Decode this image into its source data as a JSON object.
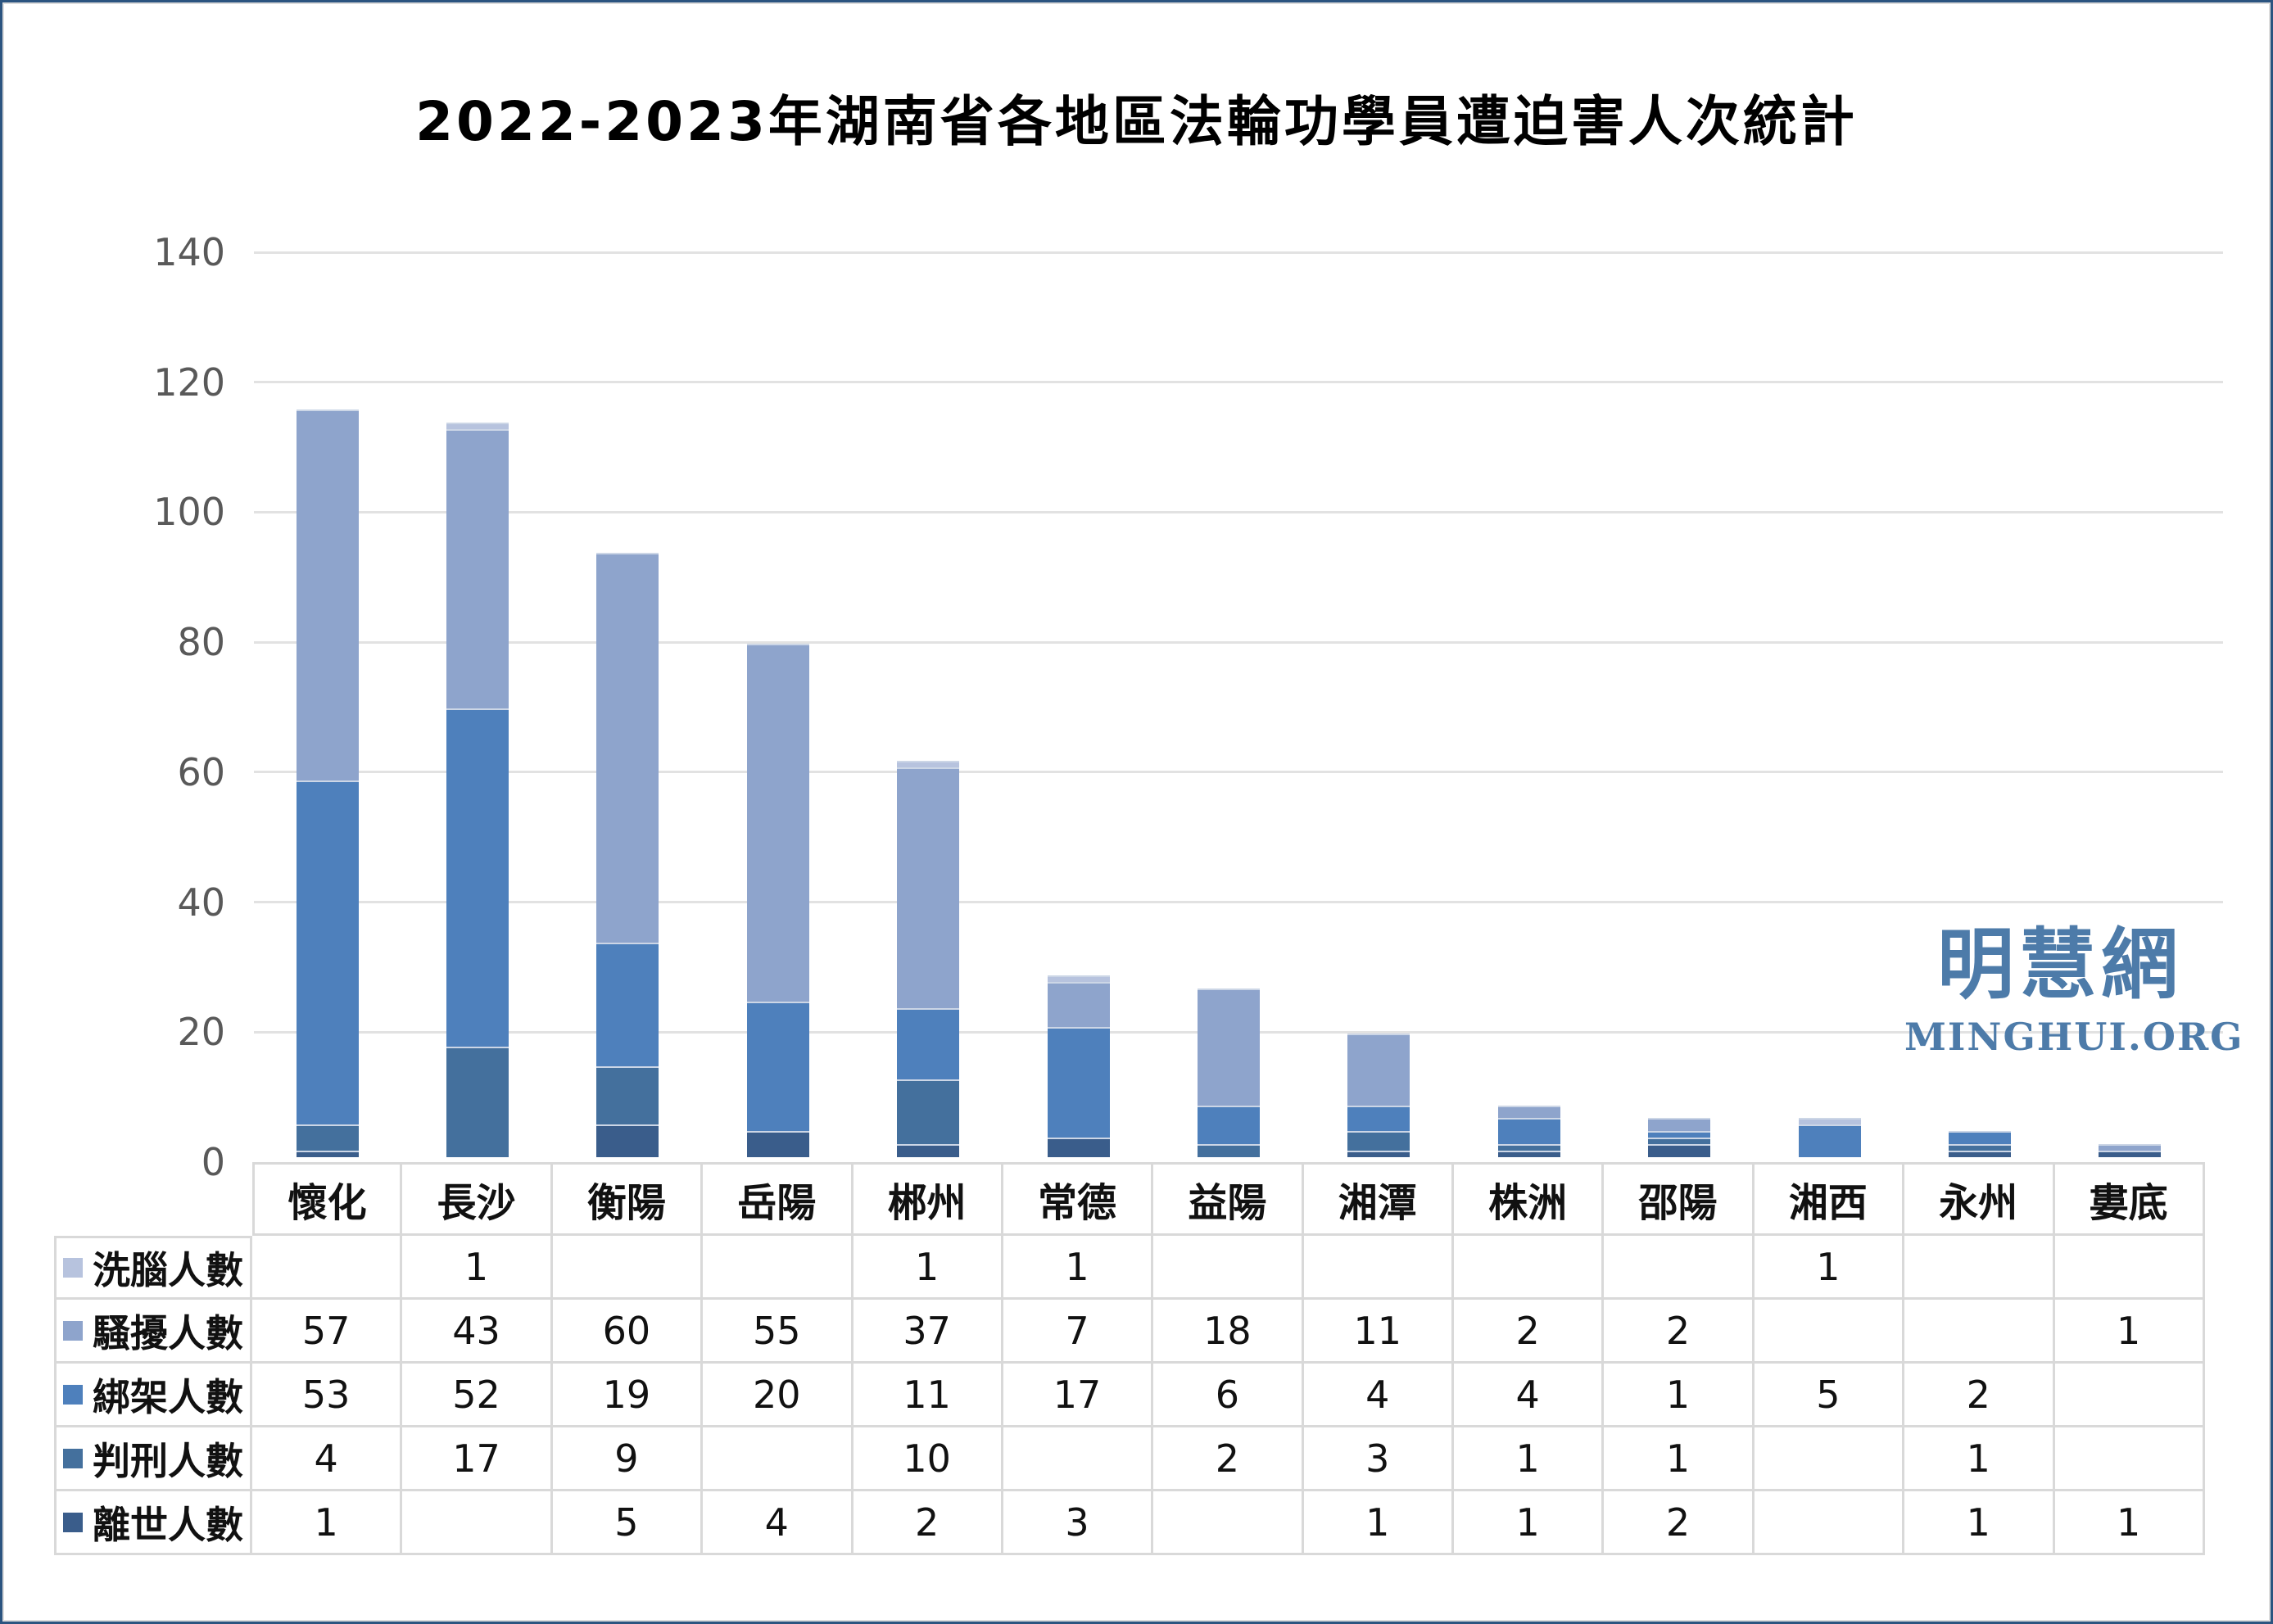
{
  "title": "2022-2023年湖南省各地區法輪功學員遭迫害人次統計",
  "watermark": {
    "cn": "明慧網",
    "en": "MINGHUI.ORG"
  },
  "colors": {
    "frame_border": "#2b5480",
    "grid_line": "#e2e2e2",
    "table_border": "#d9d9d9",
    "axis_label": "#595959",
    "watermark": "#4d7ba9"
  },
  "chart_data": {
    "type": "bar",
    "stacked": true,
    "title": "2022-2023年湖南省各地區法輪功學員遭迫害人次統計",
    "categories": [
      "懷化",
      "長沙",
      "衡陽",
      "岳陽",
      "郴州",
      "常德",
      "益陽",
      "湘潭",
      "株洲",
      "邵陽",
      "湘西",
      "永州",
      "婁底"
    ],
    "series": [
      {
        "key": "deaths",
        "name": "離世人數",
        "color": "#3a5d8b",
        "values": [
          1,
          0,
          5,
          4,
          2,
          3,
          0,
          1,
          1,
          2,
          0,
          1,
          1
        ]
      },
      {
        "key": "sentenced",
        "name": "判刑人數",
        "color": "#44709d",
        "values": [
          4,
          17,
          9,
          0,
          10,
          0,
          2,
          3,
          1,
          1,
          0,
          1,
          0
        ]
      },
      {
        "key": "abducted",
        "name": "綁架人數",
        "color": "#4e80bc",
        "values": [
          53,
          52,
          19,
          20,
          11,
          17,
          6,
          4,
          4,
          1,
          5,
          2,
          0
        ]
      },
      {
        "key": "harassed",
        "name": "騷擾人數",
        "color": "#8ea4cc",
        "values": [
          57,
          43,
          60,
          55,
          37,
          7,
          18,
          11,
          2,
          2,
          0,
          0,
          1
        ]
      },
      {
        "key": "brainwashed",
        "name": "洗腦人數",
        "color": "#b7c3de",
        "values": [
          0,
          1,
          0,
          0,
          1,
          1,
          0,
          0,
          0,
          0,
          1,
          0,
          0
        ]
      }
    ],
    "stack_order_note": "series listed bottom-of-stack first; table rows display in reverse order (洗腦 on top)",
    "totals": [
      115,
      113,
      93,
      79,
      61,
      28,
      26,
      19,
      8,
      6,
      6,
      4,
      2
    ],
    "ylim": [
      0,
      140
    ],
    "ytick_step": 20,
    "grid": true,
    "xlabel": "",
    "ylabel": "",
    "legend_position": "table-rows-below-chart"
  }
}
